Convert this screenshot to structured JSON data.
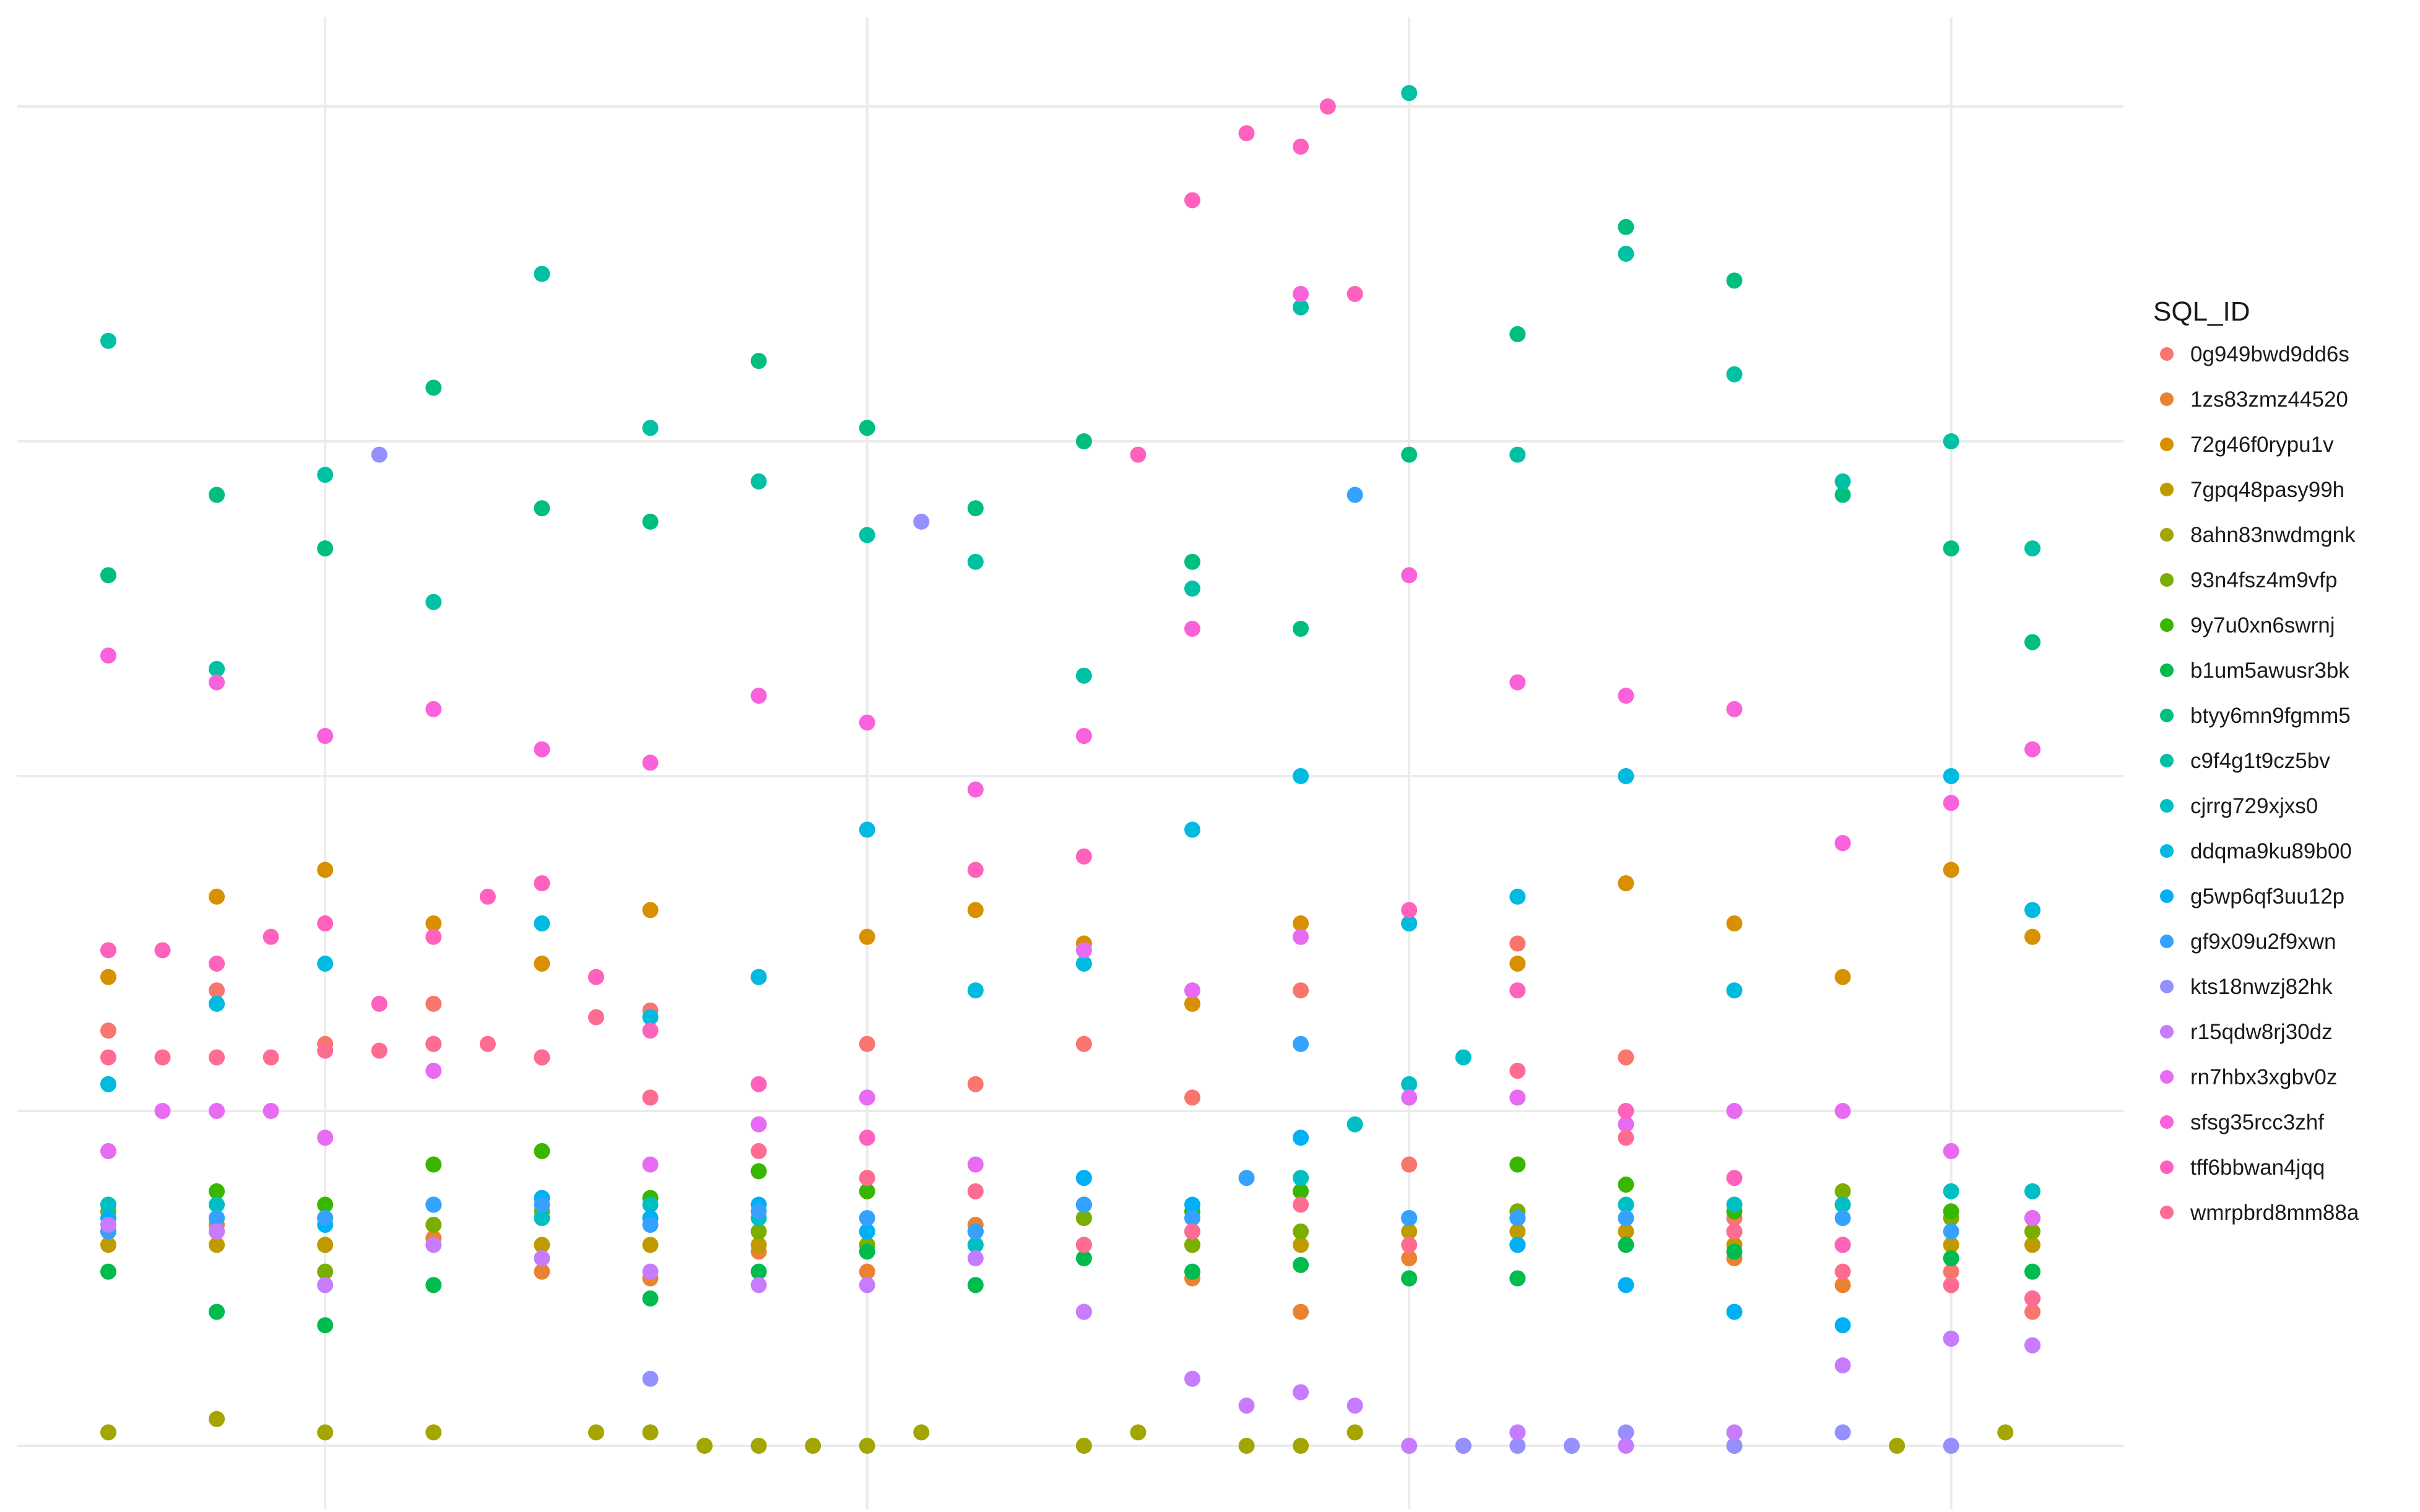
{
  "chart_data": {
    "type": "scatter",
    "title": "",
    "xlabel": "",
    "ylabel": "",
    "xlim": [
      0,
      38
    ],
    "ylim": [
      0,
      20
    ],
    "x_gridlines": [
      5,
      15,
      25,
      35
    ],
    "y_gridlines": [
      0,
      5,
      10,
      15,
      20
    ],
    "grid": true,
    "legend": {
      "title": "SQL_ID",
      "position": "right",
      "entries": [
        {
          "name": "0g949bwd9dd6s",
          "color": "#F8766D"
        },
        {
          "name": "1zs83zmz44520",
          "color": "#EA8331"
        },
        {
          "name": "72g46f0rypu1v",
          "color": "#D89000"
        },
        {
          "name": "7gpq48pasy99h",
          "color": "#C09B00"
        },
        {
          "name": "8ahn83nwdmgnk",
          "color": "#A3A500"
        },
        {
          "name": "93n4fsz4m9vfp",
          "color": "#7CAE00"
        },
        {
          "name": "9y7u0xn6swrnj",
          "color": "#39B600"
        },
        {
          "name": "b1um5awusr3bk",
          "color": "#00BB4E"
        },
        {
          "name": "btyy6mn9fgmm5",
          "color": "#00BF7D"
        },
        {
          "name": "c9f4g1t9cz5bv",
          "color": "#00C1A3"
        },
        {
          "name": "cjrrg729xjxs0",
          "color": "#00BFC4"
        },
        {
          "name": "ddqma9ku89b00",
          "color": "#00BAE0"
        },
        {
          "name": "g5wp6qf3uu12p",
          "color": "#00B0F6"
        },
        {
          "name": "gf9x09u2f9xwn",
          "color": "#35A2FF"
        },
        {
          "name": "kts18nwzj82hk",
          "color": "#9590FF"
        },
        {
          "name": "r15qdw8rj30dz",
          "color": "#C77CFF"
        },
        {
          "name": "rn7hbx3xgbv0z",
          "color": "#E76BF3"
        },
        {
          "name": "sfsg35rcc3zhf",
          "color": "#FA62DB"
        },
        {
          "name": "tff6bbwan4jqq",
          "color": "#FF62BC"
        },
        {
          "name": "wmrpbrd8mm88a",
          "color": "#FF6C91"
        }
      ]
    },
    "series": [
      {
        "name": "0g949bwd9dd6s",
        "x": [
          1,
          3,
          5,
          7,
          9,
          11,
          13,
          15,
          17,
          19,
          21,
          23,
          25,
          27,
          29,
          31,
          33,
          35,
          36.5
        ],
        "y": [
          6.2,
          6.8,
          6.0,
          6.6,
          5.8,
          6.5,
          7.0,
          6.0,
          5.4,
          6.0,
          5.2,
          6.8,
          4.2,
          7.5,
          5.8,
          3.4,
          3.0,
          2.6,
          2.0
        ]
      },
      {
        "name": "1zs83zmz44520",
        "x": [
          1,
          3,
          5,
          7,
          9,
          11,
          13,
          15,
          17,
          19,
          21,
          23,
          25,
          27,
          29,
          31,
          33,
          35,
          36.5
        ],
        "y": [
          3.2,
          3.3,
          3.0,
          3.1,
          2.6,
          2.5,
          2.9,
          2.6,
          3.3,
          2.0,
          2.5,
          2.0,
          2.8,
          3.0,
          3.4,
          2.8,
          2.4,
          2.8,
          2.2
        ]
      },
      {
        "name": "72g46f0rypu1v",
        "x": [
          1,
          3,
          5,
          7,
          9,
          11,
          13,
          15,
          17,
          19,
          21,
          23,
          25,
          27,
          29,
          31,
          33,
          35,
          36.5
        ],
        "y": [
          7.0,
          8.2,
          8.6,
          7.8,
          7.2,
          8.0,
          7.0,
          7.6,
          8.0,
          7.5,
          6.6,
          7.8,
          7.8,
          7.2,
          8.4,
          7.8,
          7.0,
          8.6,
          7.6
        ]
      },
      {
        "name": "7gpq48pasy99h",
        "x": [
          1,
          3,
          5,
          7,
          9,
          11,
          13,
          15,
          17,
          19,
          21,
          23,
          25,
          27,
          29,
          31,
          33,
          35,
          36.5
        ],
        "y": [
          3.0,
          3.0,
          3.0,
          3.0,
          3.0,
          3.0,
          3.0,
          3.0,
          3.0,
          3.0,
          3.0,
          3.0,
          3.2,
          3.2,
          3.2,
          3.0,
          3.0,
          3.0,
          3.0
        ]
      },
      {
        "name": "8ahn83nwdmgnk",
        "x": [
          1,
          3,
          5,
          7,
          10,
          11,
          12,
          13,
          14,
          15,
          16,
          19,
          20,
          22,
          23,
          24,
          26,
          28,
          31,
          34,
          36
        ],
        "y": [
          0.2,
          0.4,
          0.2,
          0.2,
          0.2,
          0.2,
          0.0,
          0.0,
          0.0,
          0.0,
          0.2,
          0.0,
          0.2,
          0.0,
          0.0,
          0.2,
          0.0,
          0.0,
          0.0,
          0.0,
          0.2
        ]
      },
      {
        "name": "93n4fsz4m9vfp",
        "x": [
          1,
          3,
          5,
          7,
          9,
          11,
          13,
          15,
          17,
          19,
          21,
          23,
          25,
          27,
          29,
          31,
          33,
          35,
          36.5
        ],
        "y": [
          3.5,
          3.2,
          2.6,
          3.3,
          3.5,
          3.4,
          3.2,
          3.0,
          3.2,
          3.4,
          3.0,
          3.2,
          2.5,
          3.5,
          3.6,
          3.6,
          3.8,
          3.4,
          3.2
        ]
      },
      {
        "name": "9y7u0xn6swrnj",
        "x": [
          1,
          3,
          5,
          7,
          9,
          11,
          13,
          15,
          17,
          19,
          21,
          23,
          25,
          27,
          29,
          31,
          33,
          35,
          36.5
        ],
        "y": [
          3.6,
          3.8,
          3.6,
          4.2,
          4.4,
          3.7,
          4.1,
          3.8,
          3.2,
          3.6,
          3.5,
          3.8,
          3.4,
          4.2,
          3.9,
          3.5,
          3.6,
          3.5,
          3.4
        ]
      },
      {
        "name": "b1um5awusr3bk",
        "x": [
          1,
          3,
          5,
          7,
          9,
          11,
          13,
          15,
          17,
          19,
          21,
          23,
          25,
          27,
          29,
          31,
          33,
          35,
          36.5
        ],
        "y": [
          2.6,
          2.0,
          1.8,
          2.4,
          2.8,
          2.2,
          2.6,
          2.9,
          2.4,
          2.8,
          2.6,
          2.7,
          2.5,
          2.5,
          3.0,
          2.9,
          3.0,
          2.8,
          2.6
        ]
      },
      {
        "name": "btyy6mn9fgmm5",
        "x": [
          1,
          3,
          5,
          7,
          9,
          11,
          13,
          15,
          17,
          19,
          21,
          23,
          25,
          27,
          29,
          31,
          33,
          35,
          36.5
        ],
        "y": [
          13.0,
          14.2,
          13.4,
          15.8,
          14.0,
          13.8,
          16.2,
          15.2,
          14.0,
          15.0,
          13.2,
          12.2,
          14.8,
          16.6,
          18.2,
          17.4,
          14.2,
          13.4,
          12.0
        ]
      },
      {
        "name": "c9f4g1t9cz5bv",
        "x": [
          1,
          3,
          5,
          7,
          9,
          11,
          13,
          15,
          17,
          19,
          21,
          23,
          25,
          27,
          29,
          31,
          33,
          35,
          36.5
        ],
        "y": [
          16.5,
          11.6,
          14.5,
          12.6,
          17.5,
          15.2,
          14.4,
          13.6,
          13.2,
          11.5,
          12.8,
          17.0,
          20.2,
          14.8,
          17.8,
          16.0,
          14.4,
          15.0,
          13.4
        ]
      },
      {
        "name": "cjrrg729xjxs0",
        "x": [
          1,
          3,
          5,
          7,
          9,
          11,
          13,
          15,
          17,
          19,
          21,
          23,
          24,
          25,
          26,
          27,
          29,
          31,
          33,
          35,
          36.5
        ],
        "y": [
          3.6,
          3.6,
          3.4,
          3.6,
          3.4,
          3.6,
          3.4,
          3.2,
          3.0,
          3.6,
          3.2,
          4.0,
          4.8,
          5.4,
          5.8,
          3.4,
          3.6,
          3.6,
          3.6,
          3.8,
          3.8
        ]
      },
      {
        "name": "ddqma9ku89b00",
        "x": [
          1,
          3,
          5,
          7,
          9,
          11,
          13,
          15,
          17,
          19,
          21,
          23,
          25,
          27,
          29,
          31,
          33,
          35,
          36.5
        ],
        "y": [
          5.4,
          6.6,
          7.2,
          6.0,
          7.8,
          6.4,
          7.0,
          9.2,
          6.8,
          7.2,
          9.2,
          10.0,
          7.8,
          8.2,
          10.0,
          6.8,
          9.0,
          10.0,
          8.0
        ]
      },
      {
        "name": "g5wp6qf3uu12p",
        "x": [
          1,
          3,
          5,
          7,
          9,
          11,
          13,
          15,
          17,
          19,
          21,
          23,
          25,
          27,
          29,
          31,
          33,
          35,
          36.5
        ],
        "y": [
          3.4,
          3.4,
          3.3,
          3.6,
          3.7,
          3.4,
          3.6,
          3.2,
          3.2,
          4.0,
          3.6,
          4.6,
          3.4,
          3.0,
          2.4,
          2.0,
          1.8,
          1.6,
          1.5
        ]
      },
      {
        "name": "gf9x09u2f9xwn",
        "x": [
          1,
          3,
          5,
          7,
          9,
          11,
          13,
          15,
          17,
          19,
          21,
          22,
          23,
          24,
          25,
          27,
          29,
          31,
          33,
          35,
          36.5
        ],
        "y": [
          3.2,
          3.4,
          3.4,
          3.6,
          3.6,
          3.3,
          3.5,
          3.4,
          3.2,
          3.6,
          3.4,
          4.0,
          6.0,
          14.2,
          3.4,
          3.4,
          3.4,
          3.2,
          3.4,
          3.2,
          3.4
        ]
      },
      {
        "name": "kts18nwzj82hk",
        "x": [
          6,
          11,
          16,
          25,
          26,
          27,
          28,
          29,
          31,
          33,
          35
        ],
        "y": [
          14.8,
          1.0,
          13.8,
          0.0,
          0.0,
          0.0,
          0.0,
          0.2,
          0.0,
          0.2,
          0.0
        ]
      },
      {
        "name": "r15qdw8rj30dz",
        "x": [
          1,
          3,
          5,
          7,
          9,
          11,
          13,
          15,
          17,
          19,
          21,
          22,
          23,
          24,
          25,
          27,
          29,
          31,
          33,
          35,
          36.5
        ],
        "y": [
          3.3,
          3.2,
          2.4,
          3.0,
          2.8,
          2.6,
          2.4,
          2.4,
          2.8,
          2.0,
          1.0,
          0.6,
          0.8,
          0.6,
          0.0,
          0.2,
          0.0,
          0.2,
          1.2,
          1.6,
          1.5
        ]
      },
      {
        "name": "rn7hbx3xgbv0z",
        "x": [
          1,
          2,
          3,
          4,
          5,
          7,
          9,
          11,
          13,
          15,
          17,
          19,
          21,
          23,
          25,
          27,
          29,
          31,
          33,
          35,
          36.5
        ],
        "y": [
          4.4,
          5.0,
          5.0,
          5.0,
          4.6,
          5.6,
          5.8,
          4.2,
          4.8,
          5.2,
          4.2,
          7.4,
          6.8,
          7.6,
          5.2,
          5.2,
          4.8,
          5.0,
          5.0,
          4.4,
          3.4
        ]
      },
      {
        "name": "sfsg35rcc3zhf",
        "x": [
          1,
          3,
          5,
          7,
          9,
          11,
          13,
          15,
          17,
          19,
          21,
          23,
          25,
          27,
          29,
          31,
          33,
          35,
          36.5
        ],
        "y": [
          11.8,
          11.4,
          10.6,
          11.0,
          10.4,
          10.2,
          11.2,
          10.8,
          9.8,
          10.6,
          12.2,
          17.2,
          13.0,
          11.4,
          11.2,
          11.0,
          9.0,
          9.6,
          10.4
        ]
      },
      {
        "name": "tff6bbwan4jqq",
        "x": [
          1,
          2,
          3,
          4,
          5,
          6,
          7,
          8,
          9,
          10,
          11,
          13,
          15,
          17,
          19,
          20,
          21,
          22,
          23,
          23.5,
          24,
          25,
          27,
          29,
          31,
          33,
          35,
          36.5
        ],
        "y": [
          7.4,
          7.4,
          7.2,
          7.6,
          7.8,
          6.6,
          7.6,
          8.2,
          8.4,
          7.0,
          6.2,
          5.4,
          4.6,
          8.6,
          8.8,
          14.8,
          18.6,
          19.6,
          19.4,
          20.0,
          17.2,
          8.0,
          6.8,
          5.0,
          4.0,
          3.0,
          2.4,
          2.2
        ]
      },
      {
        "name": "wmrpbrd8mm88a",
        "x": [
          1,
          2,
          3,
          4,
          5,
          6,
          7,
          8,
          9,
          10,
          11,
          13,
          15,
          17,
          19,
          21,
          23,
          25,
          27,
          29,
          31,
          33,
          35,
          36.5
        ],
        "y": [
          5.8,
          5.8,
          5.8,
          5.8,
          5.9,
          5.9,
          6.0,
          6.0,
          5.8,
          6.4,
          5.2,
          4.4,
          4.0,
          3.8,
          3.0,
          3.2,
          3.6,
          3.0,
          5.6,
          4.6,
          3.2,
          2.6,
          2.4,
          2.2
        ]
      }
    ]
  }
}
